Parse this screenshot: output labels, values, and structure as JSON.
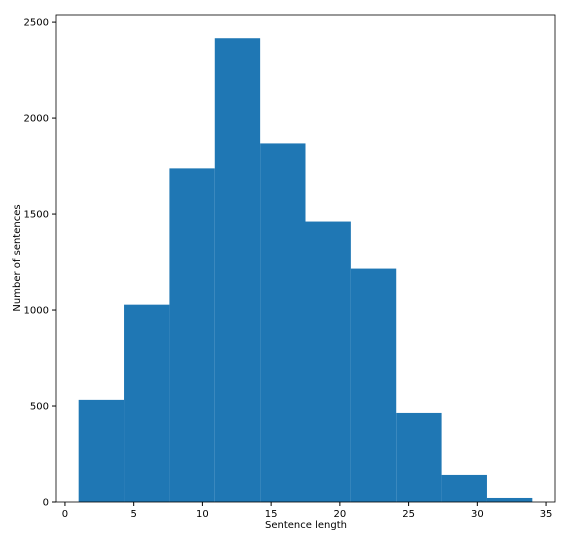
{
  "chart_data": {
    "type": "histogram",
    "x_label": "Sentence length",
    "y_label": "Number of sentences",
    "bins": [
      1,
      4.3,
      7.6,
      10.9,
      14.2,
      17.5,
      20.8,
      24.1,
      27.4,
      30.7,
      34
    ],
    "values": [
      532,
      1028,
      1738,
      2416,
      1868,
      1461,
      1216,
      464,
      141,
      21
    ],
    "color": "#1f77b4",
    "xlim": [
      -0.65,
      35.65
    ],
    "xticks": [
      0,
      5,
      10,
      15,
      20,
      25,
      30,
      35
    ],
    "ylim": [
      0,
      2537
    ],
    "yticks": [
      0,
      500,
      1000,
      1500,
      2000,
      2500
    ],
    "grid": false
  }
}
